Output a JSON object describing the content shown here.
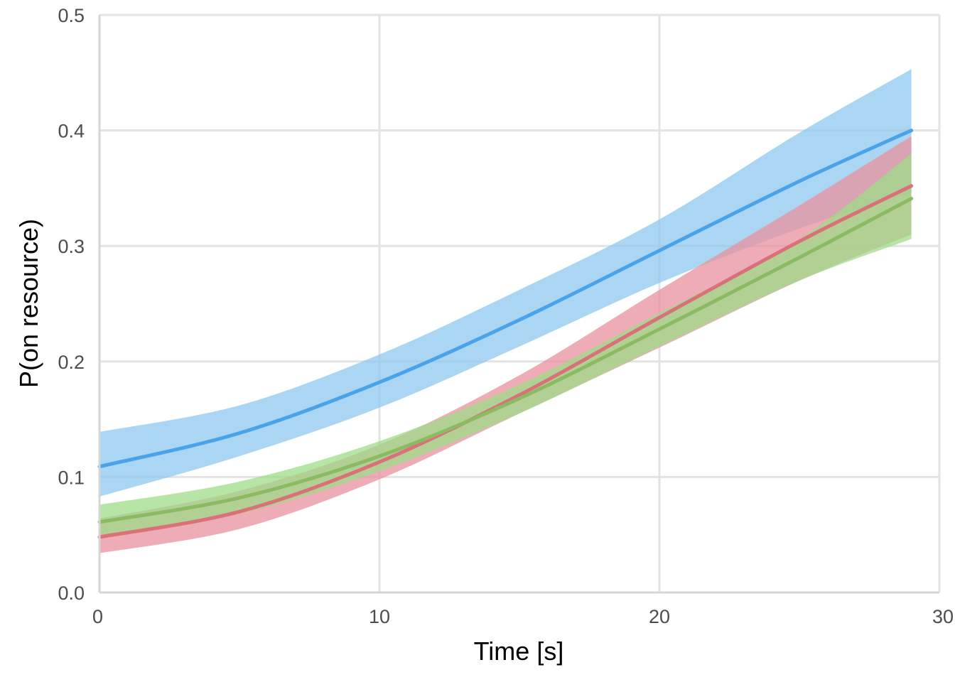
{
  "chart_data": {
    "type": "line",
    "title": "",
    "xlabel": "Time [s]",
    "ylabel": "P(on resource)",
    "xlim": [
      0,
      30
    ],
    "ylim": [
      0,
      0.5
    ],
    "x_ticks": [
      0,
      10,
      20,
      30
    ],
    "x_tick_labels": [
      "0",
      "10",
      "20",
      "30"
    ],
    "y_ticks": [
      0,
      0.1,
      0.2,
      0.3,
      0.4,
      0.5
    ],
    "y_tick_labels": [
      "0.0",
      "0.1",
      "0.2",
      "0.3",
      "0.4",
      "0.5"
    ],
    "grid": true,
    "legend": "none",
    "x": [
      0,
      5,
      10,
      15,
      20,
      25,
      29
    ],
    "series": [
      {
        "name": "blue",
        "color": "#4aa3e8",
        "band_color": "#8ec8ef",
        "mean": [
          0.109,
          0.138,
          0.182,
          0.236,
          0.296,
          0.356,
          0.4
        ],
        "lower": [
          0.083,
          0.118,
          0.16,
          0.213,
          0.268,
          0.315,
          0.346
        ],
        "upper": [
          0.139,
          0.162,
          0.206,
          0.262,
          0.323,
          0.398,
          0.453
        ]
      },
      {
        "name": "red",
        "color": "#d9707a",
        "band_color": "#e8919e",
        "mean": [
          0.048,
          0.07,
          0.113,
          0.171,
          0.238,
          0.304,
          0.352
        ],
        "lower": [
          0.034,
          0.055,
          0.098,
          0.155,
          0.212,
          0.27,
          0.31
        ],
        "upper": [
          0.064,
          0.088,
          0.128,
          0.188,
          0.262,
          0.335,
          0.395
        ]
      },
      {
        "name": "green",
        "color": "#8cba62",
        "band_color": "#9ddc88",
        "mean": [
          0.061,
          0.082,
          0.118,
          0.168,
          0.228,
          0.29,
          0.341
        ],
        "lower": [
          0.048,
          0.068,
          0.105,
          0.155,
          0.213,
          0.27,
          0.306
        ],
        "upper": [
          0.076,
          0.096,
          0.131,
          0.18,
          0.242,
          0.306,
          0.38
        ]
      }
    ]
  }
}
